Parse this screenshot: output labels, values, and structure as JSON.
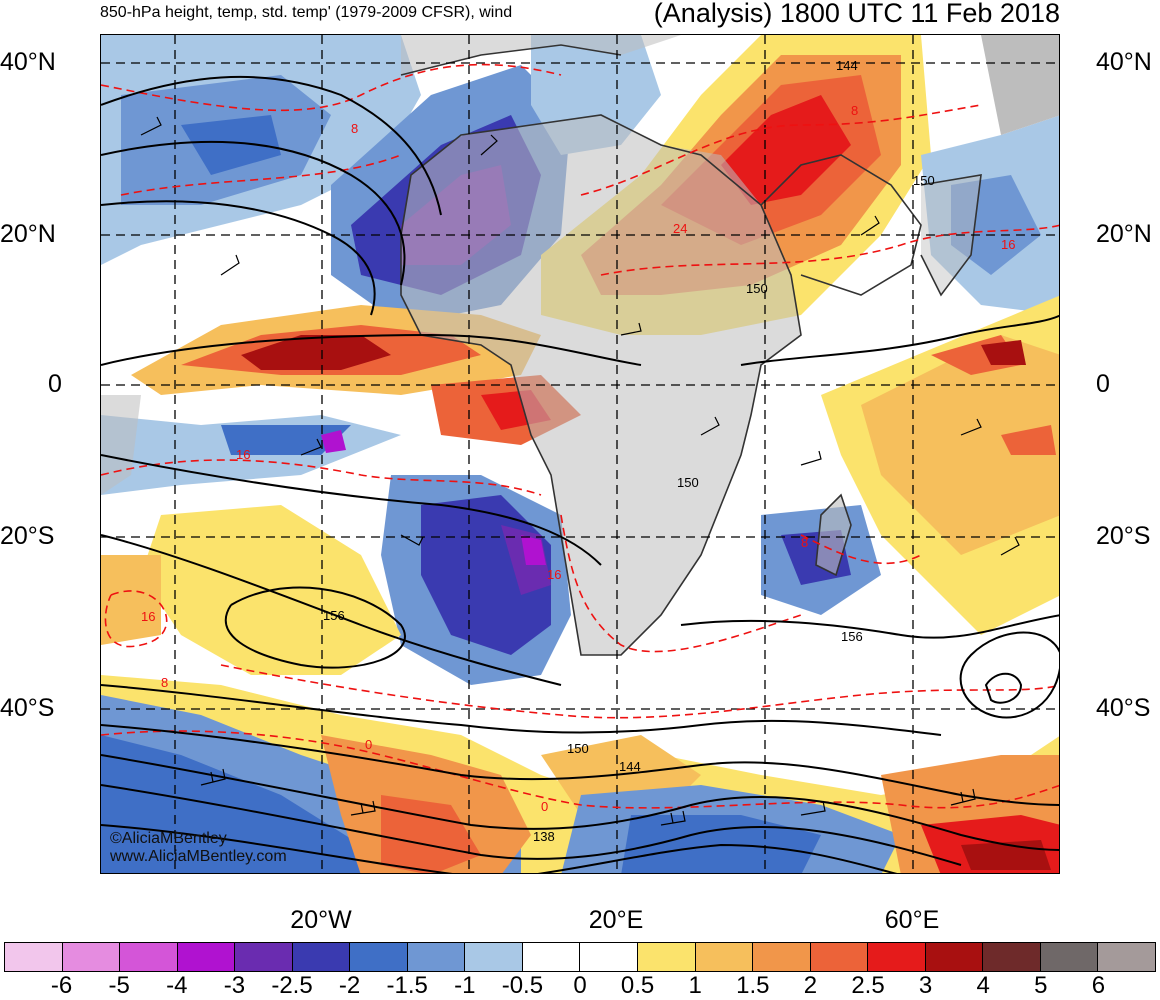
{
  "header": {
    "left_title": "850-hPa height, temp, std. temp' (1979-2009 CFSR), wind",
    "right_title": "(Analysis) 1800 UTC 11 Feb 2018"
  },
  "axes": {
    "lat_labels": [
      "40°N",
      "20°N",
      "0",
      "20°S",
      "40°S"
    ],
    "lon_labels": [
      "20°W",
      "20°E",
      "60°E"
    ]
  },
  "contour_labels": {
    "height": [
      "144",
      "150",
      "150",
      "150",
      "156",
      "156",
      "150",
      "144",
      "138"
    ],
    "temp": [
      "8",
      "24",
      "8",
      "16",
      "16",
      "16",
      "16",
      "8",
      "8",
      "0",
      "0"
    ]
  },
  "credit": {
    "line1": "©AliciaMBentley",
    "line2": "www.AliciaMBentley.com"
  },
  "colorbar": {
    "labels": [
      "-6",
      "-5",
      "-4",
      "-3",
      "-2.5",
      "-2",
      "-1.5",
      "-1",
      "-0.5",
      "0",
      "0.5",
      "1",
      "1.5",
      "2",
      "2.5",
      "3",
      "4",
      "5",
      "6"
    ],
    "colors": [
      "#f2c6ec",
      "#e58ce0",
      "#d455d8",
      "#b012d0",
      "#6a2cb0",
      "#3a3ab0",
      "#3f6fc6",
      "#6f97d3",
      "#a9c8e6",
      "#ffffff",
      "#ffffff",
      "#fbe36c",
      "#f6bf5c",
      "#f1964a",
      "#ec6339",
      "#e51b1b",
      "#a81010",
      "#6e2a2a",
      "#6f6868",
      "#a49a9a"
    ]
  },
  "colors": {
    "land": "#bdbdbd",
    "temp_contour": "#ee1111",
    "height_contour": "#000000"
  }
}
